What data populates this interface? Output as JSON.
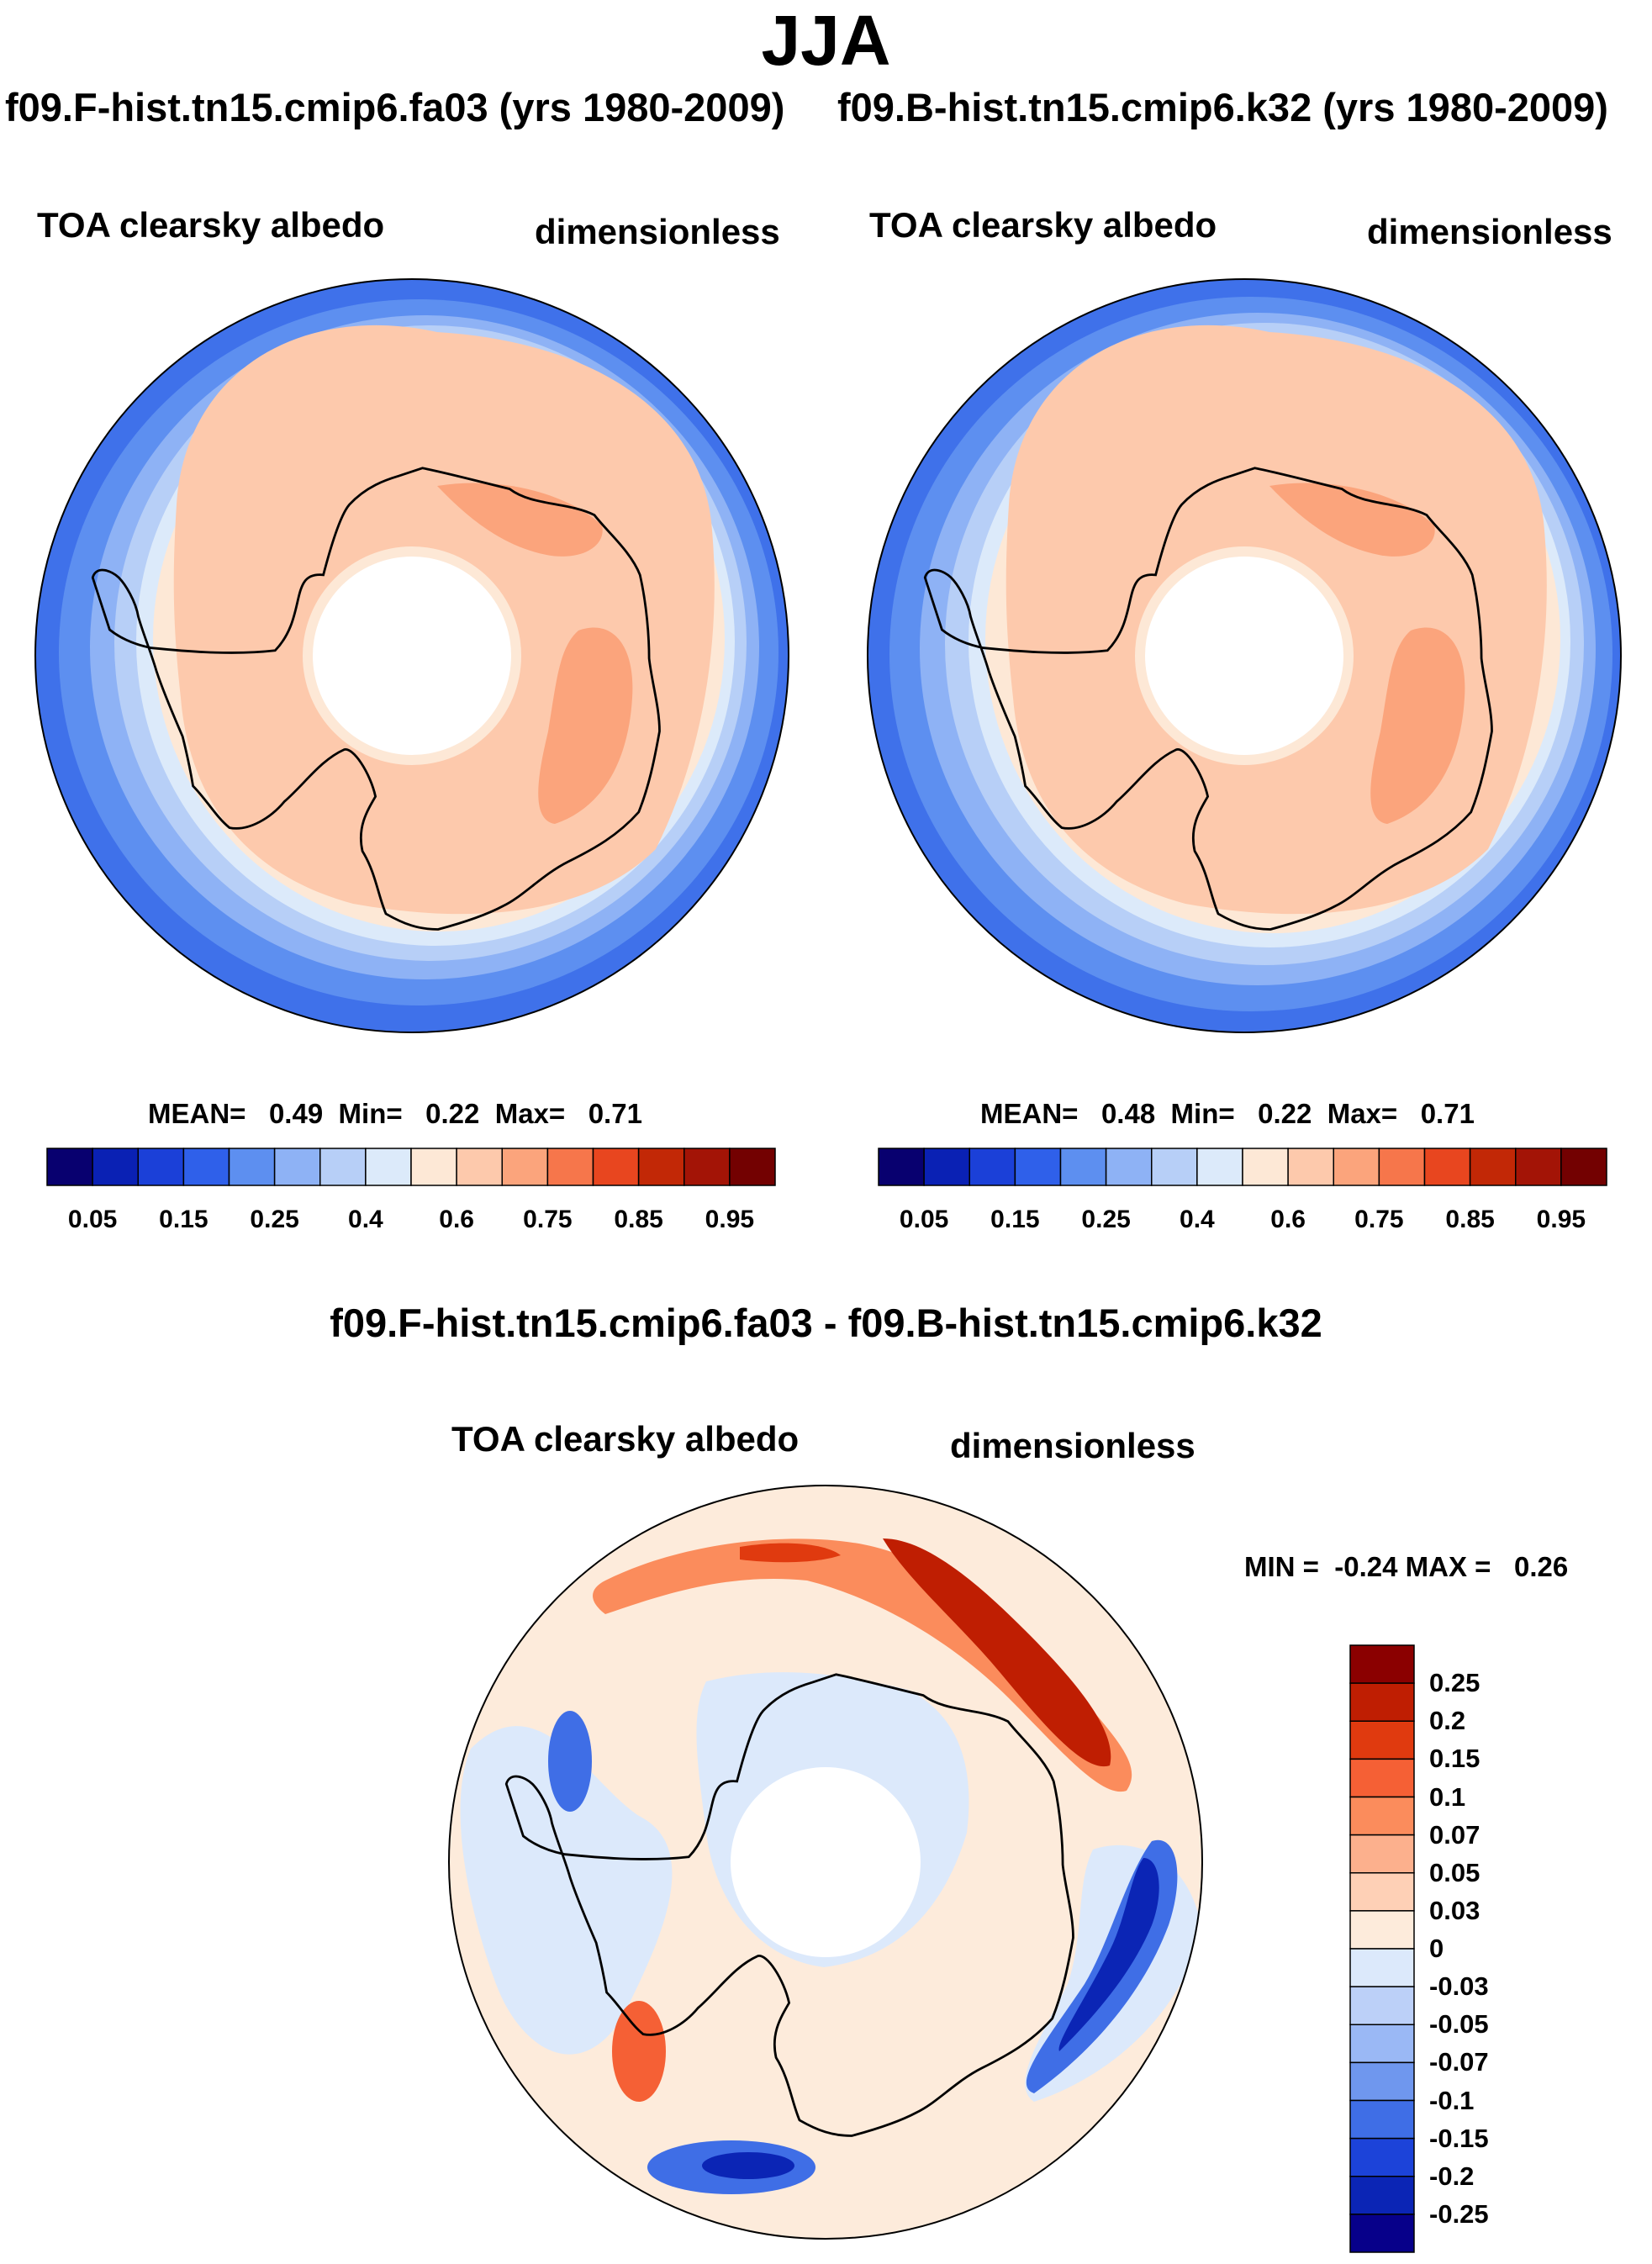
{
  "title": "JJA",
  "runs": {
    "test": "f09.F-hist.tn15.cmip6.fa03 (yrs 1980-2009)",
    "control": "f09.B-hist.tn15.cmip6.k32 (yrs 1980-2009)"
  },
  "diff_title": "f09.F-hist.tn15.cmip6.fa03 - f09.B-hist.tn15.cmip6.k32",
  "chart_data": [
    {
      "type": "heatmap",
      "projection": "south-polar-stereographic",
      "variable": "TOA clearsky albedo",
      "units": "dimensionless",
      "stats": {
        "mean": "0.49",
        "min": "0.22",
        "max": "0.71"
      },
      "mean_label": "MEAN=",
      "min_label": "Min=",
      "max_label": "Max=",
      "colorbar": {
        "orientation": "horizontal",
        "levels": [
          "0.05",
          "0.15",
          "0.25",
          "0.4",
          "0.6",
          "0.75",
          "0.85",
          "0.95"
        ],
        "colors": [
          "#08006f",
          "#0a21b4",
          "#1b40d8",
          "#2f60ea",
          "#5d8ff0",
          "#8eb2f5",
          "#b7cff7",
          "#dceafa",
          "#fde8d6",
          "#fdc9ac",
          "#fba47c",
          "#f6764b",
          "#e8461f",
          "#c22806",
          "#a31406",
          "#730101"
        ]
      }
    },
    {
      "type": "heatmap",
      "projection": "south-polar-stereographic",
      "variable": "TOA clearsky albedo",
      "units": "dimensionless",
      "stats": {
        "mean": "0.48",
        "min": "0.22",
        "max": "0.71"
      },
      "mean_label": "MEAN=",
      "min_label": "Min=",
      "max_label": "Max=",
      "colorbar": {
        "orientation": "horizontal",
        "levels": [
          "0.05",
          "0.15",
          "0.25",
          "0.4",
          "0.6",
          "0.75",
          "0.85",
          "0.95"
        ],
        "colors": [
          "#08006f",
          "#0a21b4",
          "#1b40d8",
          "#2f60ea",
          "#5d8ff0",
          "#8eb2f5",
          "#b7cff7",
          "#dceafa",
          "#fde8d6",
          "#fdc9ac",
          "#fba47c",
          "#f6764b",
          "#e8461f",
          "#c22806",
          "#a31406",
          "#730101"
        ]
      }
    },
    {
      "type": "heatmap",
      "projection": "south-polar-stereographic",
      "variable": "TOA clearsky albedo",
      "units": "dimensionless",
      "stats": {
        "min": "-0.24",
        "max": "0.26"
      },
      "min_label": "MIN =",
      "max_label": "MAX =",
      "colorbar": {
        "orientation": "vertical",
        "levels": [
          "0.25",
          "0.2",
          "0.15",
          "0.1",
          "0.07",
          "0.05",
          "0.03",
          "0",
          "-0.03",
          "-0.05",
          "-0.07",
          "-0.1",
          "-0.15",
          "-0.2",
          "-0.25"
        ],
        "colors": [
          "#8b0000",
          "#bf1e02",
          "#e03a0f",
          "#f56035",
          "#fb8c5c",
          "#fcb08d",
          "#fed0b6",
          "#fdebdb",
          "#dce9fb",
          "#bcd0f8",
          "#9ab8f5",
          "#6f97ee",
          "#3f6ee6",
          "#1c43d9",
          "#0b25b5",
          "#07008a"
        ]
      }
    }
  ]
}
